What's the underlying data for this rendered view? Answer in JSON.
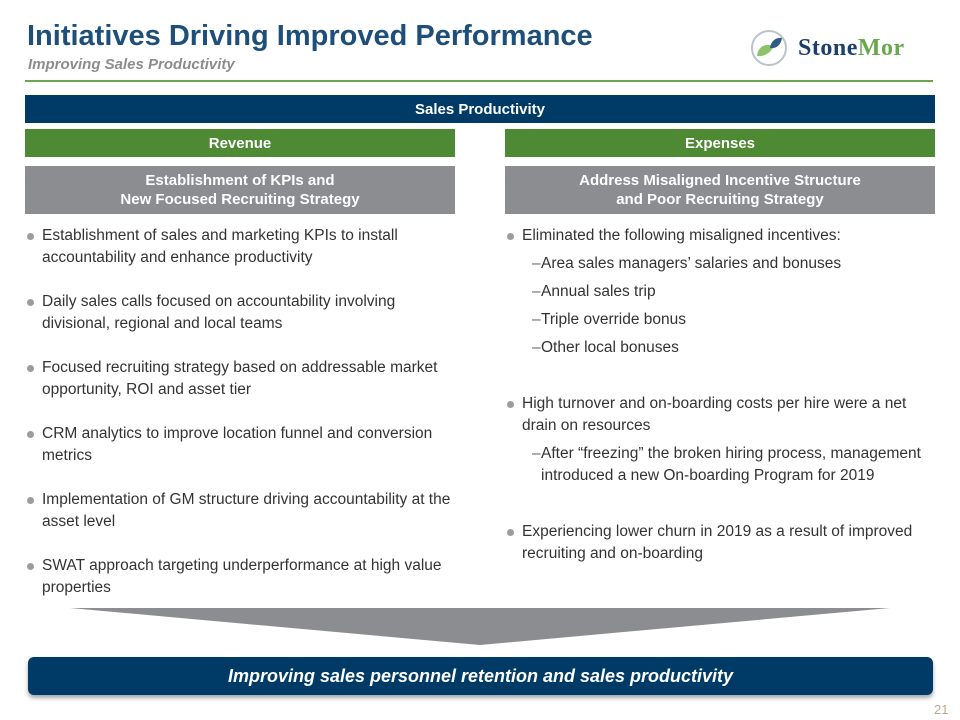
{
  "header": {
    "title": "Initiatives Driving Improved Performance",
    "subtitle": "Improving Sales Productivity",
    "logo_text": {
      "part1": "StoneMor"
    }
  },
  "logo": {
    "first": "Stone",
    "second": "Mor"
  },
  "banner": "Sales Productivity",
  "left": {
    "heading": "Revenue",
    "subheading_line1": "Establishment of KPIs and",
    "subheading_line2": "New Focused Recruiting Strategy",
    "bullets": [
      "Establishment of sales and marketing KPIs to install accountability and enhance productivity",
      "Daily sales calls focused on accountability involving divisional, regional and local teams",
      "Focused recruiting strategy based on addressable market opportunity, ROI and asset tier",
      "CRM analytics to improve location funnel and conversion metrics",
      "Implementation of GM structure driving accountability at the asset level",
      "SWAT approach targeting underperformance at high value properties"
    ]
  },
  "right": {
    "heading": "Expenses",
    "subheading_line1": "Address Misaligned Incentive Structure",
    "subheading_line2": "and Poor Recruiting Strategy",
    "bullet1": "Eliminated the following misaligned incentives:",
    "bullet1_subs": [
      "Area sales managers’ salaries and bonuses",
      "Annual sales trip",
      "Triple override bonus",
      "Other local bonuses"
    ],
    "bullet2": "High turnover and on-boarding costs per hire were a net drain on resources",
    "bullet2_subs": [
      "After “freezing” the broken hiring process, management introduced a new On-boarding Program for 2019"
    ],
    "bullet3": "Experiencing lower churn in 2019 as a result of improved recruiting and on-boarding"
  },
  "conclusion": "Improving sales personnel retention and sales productivity",
  "page_number": "21",
  "colors": {
    "navy": "#003a66",
    "green": "#4e8a34",
    "gray": "#8c8d91"
  }
}
